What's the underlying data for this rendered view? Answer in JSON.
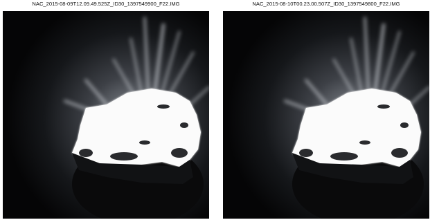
{
  "panels": [
    {
      "title": "NAC_2015-08-09T12.09.49.525Z_ID30_1397549900_F22.IMG"
    },
    {
      "title": "NAC_2015-08-10T00.23.00.507Z_ID30_1397549800_F22.IMG"
    }
  ]
}
